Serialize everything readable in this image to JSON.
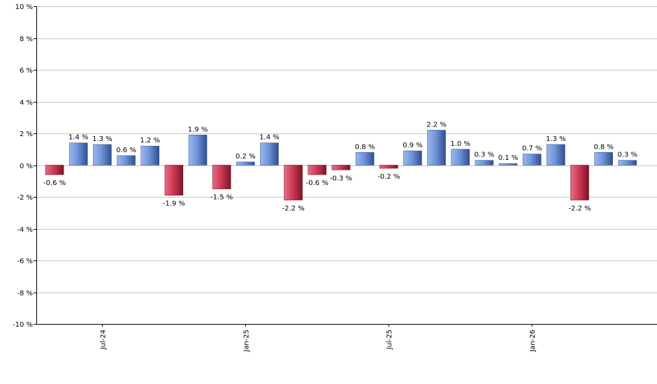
{
  "chart_data": {
    "type": "bar",
    "title": "",
    "xlabel": "",
    "ylabel": "",
    "ylim": [
      -10,
      10
    ],
    "y_ticks": [
      10,
      8,
      6,
      4,
      2,
      0,
      -2,
      -4,
      -6,
      -8,
      -10
    ],
    "y_tick_suffix": " %",
    "x_tick_labels": [
      {
        "label": "Jul-24",
        "index": 2
      },
      {
        "label": "Jan-25",
        "index": 8
      },
      {
        "label": "Jul-25",
        "index": 14
      },
      {
        "label": "Jan-26",
        "index": 20
      }
    ],
    "values": [
      -0.6,
      1.4,
      1.3,
      0.6,
      1.2,
      -1.9,
      1.9,
      -1.5,
      0.2,
      1.4,
      -2.2,
      -0.6,
      -0.3,
      0.8,
      -0.2,
      0.9,
      2.2,
      1.0,
      0.3,
      0.1,
      0.7,
      1.3,
      -2.2,
      0.8,
      0.3
    ],
    "data_labels": [
      "-0.6 %",
      "1.4 %",
      "1.3 %",
      "0.6 %",
      "1.2 %",
      "-1.9 %",
      "1.9 %",
      "-1.5 %",
      "0.2 %",
      "1.4 %",
      "-2.2 %",
      "-0.6 %",
      "-0.3 %",
      "0.8 %",
      "-0.2 %",
      "0.9 %",
      "2.2 %",
      "1.0 %",
      "0.3 %",
      "0.1 %",
      "0.7 %",
      "1.3 %",
      "-2.2 %",
      "0.8 %",
      "0.3 %"
    ],
    "grid": true,
    "colors": {
      "positive": "#6f94d8",
      "negative": "#d03a55",
      "grid": "#c8c8c8",
      "axis": "#000000"
    }
  }
}
